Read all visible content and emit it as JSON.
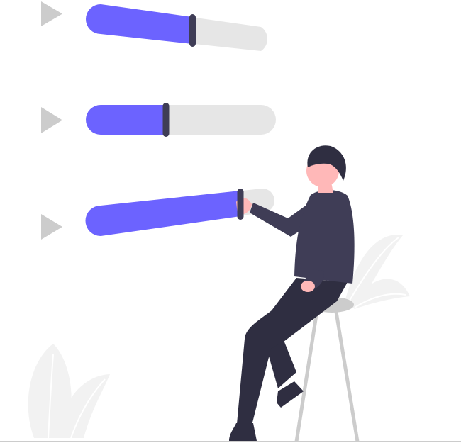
{
  "colors": {
    "accent": "#6c63ff",
    "track": "#e6e6e6",
    "play_icon": "#cccccc",
    "handle": "#3f3d56",
    "shirt": "#3f3d56",
    "pants": "#2f2e41",
    "hair": "#2f2e41",
    "skin": "#ffb8b8",
    "stool": "#cccccc",
    "plant": "#f2f2f2",
    "ground": "#cccccc"
  },
  "sliders": [
    {
      "icon": "play-icon",
      "level": 0.56
    },
    {
      "icon": "play-icon",
      "level": 0.42
    },
    {
      "icon": "play-icon",
      "level": 0.82
    }
  ]
}
